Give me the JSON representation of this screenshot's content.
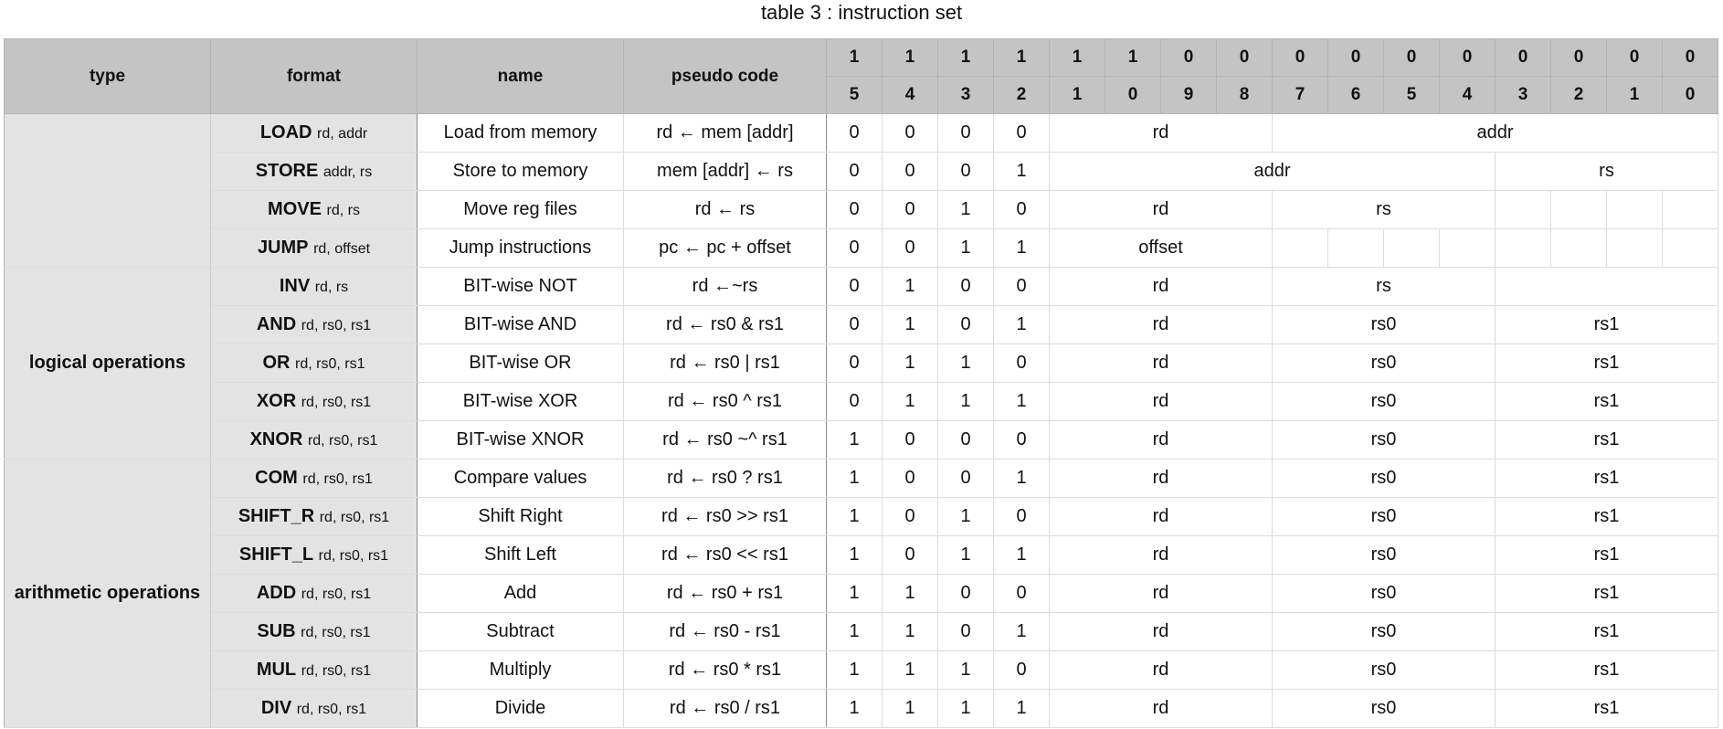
{
  "title": "table 3 : instruction set",
  "headers": {
    "type": "type",
    "format": "format",
    "name": "name",
    "pseudo": "pseudo code",
    "bit_tens": [
      "1",
      "1",
      "1",
      "1",
      "1",
      "1",
      "0",
      "0",
      "0",
      "0",
      "0",
      "0",
      "0",
      "0",
      "0",
      "0"
    ],
    "bit_ones": [
      "5",
      "4",
      "3",
      "2",
      "1",
      "0",
      "9",
      "8",
      "7",
      "6",
      "5",
      "4",
      "3",
      "2",
      "1",
      "0"
    ]
  },
  "type_groups": [
    {
      "label": ""
    },
    {
      "label": "logical operations"
    },
    {
      "label": "arithmetic operations"
    }
  ],
  "rows": [
    {
      "mnemonic": "LOAD",
      "operands": "rd, addr",
      "name": "Load from memory",
      "pseudo": "rd ← mem [addr]",
      "opcode": [
        "0",
        "0",
        "0",
        "0"
      ],
      "fields": [
        "rd",
        "addr"
      ]
    },
    {
      "mnemonic": "STORE",
      "operands": "addr, rs",
      "name": "Store to memory",
      "pseudo": "mem [addr] ← rs",
      "opcode": [
        "0",
        "0",
        "0",
        "1"
      ],
      "fields": [
        "addr",
        "rs"
      ]
    },
    {
      "mnemonic": "MOVE",
      "operands": "rd, rs",
      "name": "Move reg files",
      "pseudo": "rd ← rs",
      "opcode": [
        "0",
        "0",
        "1",
        "0"
      ],
      "fields": [
        "rd",
        "rs"
      ]
    },
    {
      "mnemonic": "JUMP",
      "operands": "rd, offset",
      "name": "Jump instructions",
      "pseudo": "pc ← pc + offset",
      "opcode": [
        "0",
        "0",
        "1",
        "1"
      ],
      "fields": [
        "offset"
      ]
    },
    {
      "mnemonic": "INV",
      "operands": "rd, rs",
      "name": "BIT-wise NOT",
      "pseudo": "rd ←~rs",
      "opcode": [
        "0",
        "1",
        "0",
        "0"
      ],
      "fields": [
        "rd",
        "rs"
      ]
    },
    {
      "mnemonic": "AND",
      "operands": "rd, rs0, rs1",
      "name": "BIT-wise AND",
      "pseudo": "rd ← rs0 & rs1",
      "opcode": [
        "0",
        "1",
        "0",
        "1"
      ],
      "fields": [
        "rd",
        "rs0",
        "rs1"
      ]
    },
    {
      "mnemonic": "OR",
      "operands": "rd, rs0, rs1",
      "name": "BIT-wise OR",
      "pseudo": "rd ← rs0 | rs1",
      "opcode": [
        "0",
        "1",
        "1",
        "0"
      ],
      "fields": [
        "rd",
        "rs0",
        "rs1"
      ]
    },
    {
      "mnemonic": "XOR",
      "operands": "rd, rs0, rs1",
      "name": "BIT-wise XOR",
      "pseudo": "rd ← rs0 ^ rs1",
      "opcode": [
        "0",
        "1",
        "1",
        "1"
      ],
      "fields": [
        "rd",
        "rs0",
        "rs1"
      ]
    },
    {
      "mnemonic": "XNOR",
      "operands": "rd, rs0, rs1",
      "name": "BIT-wise XNOR",
      "pseudo": "rd ← rs0 ~^ rs1",
      "opcode": [
        "1",
        "0",
        "0",
        "0"
      ],
      "fields": [
        "rd",
        "rs0",
        "rs1"
      ]
    },
    {
      "mnemonic": "COM",
      "operands": "rd, rs0, rs1",
      "name": "Compare values",
      "pseudo": "rd ← rs0 ? rs1",
      "opcode": [
        "1",
        "0",
        "0",
        "1"
      ],
      "fields": [
        "rd",
        "rs0",
        "rs1"
      ]
    },
    {
      "mnemonic": "SHIFT_R",
      "operands": "rd, rs0, rs1",
      "name": "Shift Right",
      "pseudo": "rd ← rs0 >> rs1",
      "opcode": [
        "1",
        "0",
        "1",
        "0"
      ],
      "fields": [
        "rd",
        "rs0",
        "rs1"
      ]
    },
    {
      "mnemonic": "SHIFT_L",
      "operands": "rd, rs0, rs1",
      "name": "Shift Left",
      "pseudo": "rd ← rs0 << rs1",
      "opcode": [
        "1",
        "0",
        "1",
        "1"
      ],
      "fields": [
        "rd",
        "rs0",
        "rs1"
      ]
    },
    {
      "mnemonic": "ADD",
      "operands": "rd, rs0, rs1",
      "name": "Add",
      "pseudo": "rd ← rs0 + rs1",
      "opcode": [
        "1",
        "1",
        "0",
        "0"
      ],
      "fields": [
        "rd",
        "rs0",
        "rs1"
      ]
    },
    {
      "mnemonic": "SUB",
      "operands": "rd, rs0, rs1",
      "name": "Subtract",
      "pseudo": "rd ← rs0 - rs1",
      "opcode": [
        "1",
        "1",
        "0",
        "1"
      ],
      "fields": [
        "rd",
        "rs0",
        "rs1"
      ]
    },
    {
      "mnemonic": "MUL",
      "operands": "rd, rs0, rs1",
      "name": "Multiply",
      "pseudo": "rd ← rs0 * rs1",
      "opcode": [
        "1",
        "1",
        "1",
        "0"
      ],
      "fields": [
        "rd",
        "rs0",
        "rs1"
      ]
    },
    {
      "mnemonic": "DIV",
      "operands": "rd, rs0, rs1",
      "name": "Divide",
      "pseudo": "rd ← rs0 / rs1",
      "opcode": [
        "1",
        "1",
        "1",
        "1"
      ],
      "fields": [
        "rd",
        "rs0",
        "rs1"
      ]
    }
  ]
}
